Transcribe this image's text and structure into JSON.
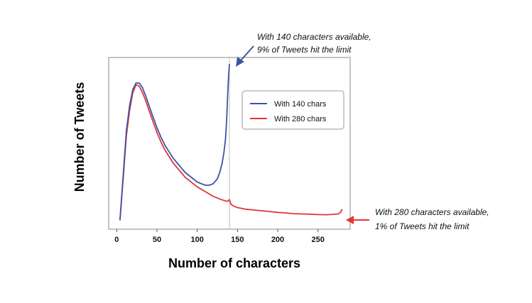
{
  "chart_data": {
    "type": "line",
    "xlabel": "Number of characters",
    "ylabel": "Number of Tweets",
    "xlim": [
      -10,
      290
    ],
    "ylim": [
      0,
      1.0
    ],
    "x_ticks": [
      0,
      50,
      100,
      150,
      200,
      250
    ],
    "y_ticks_shown": false,
    "grid": false,
    "legend_placement": "top-right",
    "reference_line_x": 140,
    "series": [
      {
        "name": "With 140 chars",
        "color": "#3d55a6",
        "x": [
          4,
          8,
          12,
          16,
          20,
          24,
          28,
          32,
          36,
          40,
          45,
          50,
          55,
          60,
          65,
          70,
          75,
          80,
          85,
          90,
          95,
          100,
          105,
          110,
          115,
          120,
          125,
          128,
          131,
          133,
          135,
          136,
          137,
          138,
          139,
          140
        ],
        "y": [
          0.02,
          0.3,
          0.58,
          0.74,
          0.84,
          0.88,
          0.88,
          0.85,
          0.8,
          0.74,
          0.67,
          0.6,
          0.54,
          0.49,
          0.45,
          0.41,
          0.38,
          0.35,
          0.32,
          0.3,
          0.28,
          0.26,
          0.25,
          0.24,
          0.24,
          0.25,
          0.28,
          0.32,
          0.38,
          0.44,
          0.52,
          0.6,
          0.7,
          0.82,
          0.93,
          1.0
        ]
      },
      {
        "name": "With 280 chars",
        "color": "#e03636",
        "x": [
          4,
          8,
          12,
          16,
          20,
          24,
          28,
          32,
          36,
          40,
          45,
          50,
          55,
          60,
          65,
          70,
          75,
          80,
          85,
          90,
          95,
          100,
          110,
          120,
          130,
          136,
          138,
          140,
          142,
          145,
          150,
          160,
          170,
          180,
          190,
          200,
          210,
          220,
          230,
          240,
          250,
          260,
          265,
          270,
          275,
          278,
          280
        ],
        "y": [
          0.02,
          0.28,
          0.55,
          0.71,
          0.82,
          0.87,
          0.86,
          0.82,
          0.77,
          0.71,
          0.64,
          0.57,
          0.51,
          0.46,
          0.42,
          0.38,
          0.35,
          0.32,
          0.29,
          0.27,
          0.25,
          0.23,
          0.2,
          0.17,
          0.15,
          0.14,
          0.14,
          0.15,
          0.12,
          0.11,
          0.1,
          0.09,
          0.085,
          0.08,
          0.075,
          0.07,
          0.066,
          0.062,
          0.06,
          0.058,
          0.056,
          0.055,
          0.056,
          0.058,
          0.06,
          0.07,
          0.09
        ]
      }
    ],
    "annotations": [
      {
        "line1": "With 140 characters available,",
        "line2": "9% of Tweets hit the limit",
        "color": "#3d55a6"
      },
      {
        "line1": "With 280 characters available,",
        "line2": "1% of Tweets hit the limit",
        "color": "#e03636"
      }
    ]
  }
}
